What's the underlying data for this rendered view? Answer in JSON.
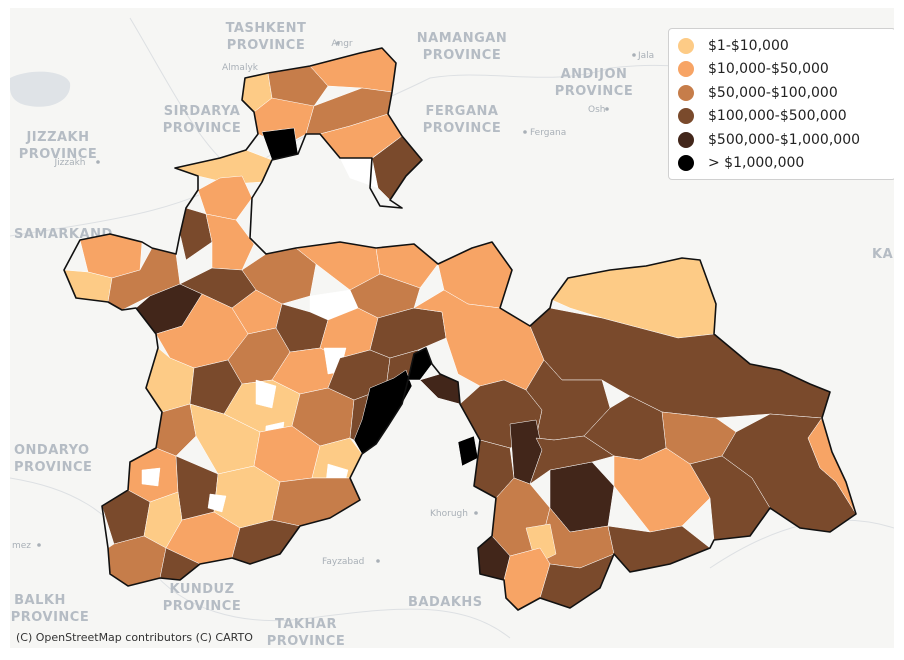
{
  "basemap_labels": [
    {
      "text": "TASHKENT",
      "kind": "region"
    },
    {
      "text": "PROVINCE",
      "kind": "region"
    },
    {
      "text": "NAMANGAN",
      "kind": "region"
    },
    {
      "text": "PROVINCE",
      "kind": "region"
    },
    {
      "text": "ANDIJON",
      "kind": "region"
    },
    {
      "text": "PROVINCE",
      "kind": "region"
    },
    {
      "text": "SIRDARYA",
      "kind": "region"
    },
    {
      "text": "PROVINCE",
      "kind": "region"
    },
    {
      "text": "FERGANA",
      "kind": "region"
    },
    {
      "text": "PROVINCE",
      "kind": "region"
    },
    {
      "text": "JIZZAKH",
      "kind": "region"
    },
    {
      "text": "PROVINCE",
      "kind": "region"
    },
    {
      "text": "SAMARKAND",
      "kind": "region"
    },
    {
      "text": "ONDARYO",
      "kind": "region"
    },
    {
      "text": "PROVINCE",
      "kind": "region"
    },
    {
      "text": "KUNDUZ",
      "kind": "region"
    },
    {
      "text": "PROVINCE",
      "kind": "region"
    },
    {
      "text": "TAKHAR",
      "kind": "region"
    },
    {
      "text": "PROVINCE",
      "kind": "region"
    },
    {
      "text": "BALKH",
      "kind": "region"
    },
    {
      "text": "PROVINCE",
      "kind": "region"
    },
    {
      "text": "BADAKHS",
      "kind": "region"
    },
    {
      "text": "KA",
      "kind": "region"
    },
    {
      "text": "Almalyk",
      "kind": "city"
    },
    {
      "text": "Angr",
      "kind": "city"
    },
    {
      "text": "Jizzakh",
      "kind": "city"
    },
    {
      "text": "Fergana",
      "kind": "city"
    },
    {
      "text": "Osh",
      "kind": "city"
    },
    {
      "text": "Jala",
      "kind": "city"
    },
    {
      "text": "Khorugh",
      "kind": "city"
    },
    {
      "text": "Fayzabad",
      "kind": "city"
    },
    {
      "text": "mez",
      "kind": "city"
    }
  ],
  "legend": {
    "items": [
      {
        "label": "$1-$10,000",
        "color": "#fdcb86"
      },
      {
        "label": "$10,000-$50,000",
        "color": "#f7a465"
      },
      {
        "label": "$50,000-$100,000",
        "color": "#c67d4a"
      },
      {
        "label": "$100,000-$500,000",
        "color": "#7a4a2c"
      },
      {
        "label": "$500,000-$1,000,000",
        "color": "#42261a"
      },
      {
        "label": "> $1,000,000",
        "color": "#000000"
      }
    ]
  },
  "attribution": "(C) OpenStreetMap contributors (C) CARTO",
  "colors": {
    "basemap_background": "#f6f6f4",
    "basemap_label": "#b5bcc4",
    "country_outline": "#111111"
  }
}
